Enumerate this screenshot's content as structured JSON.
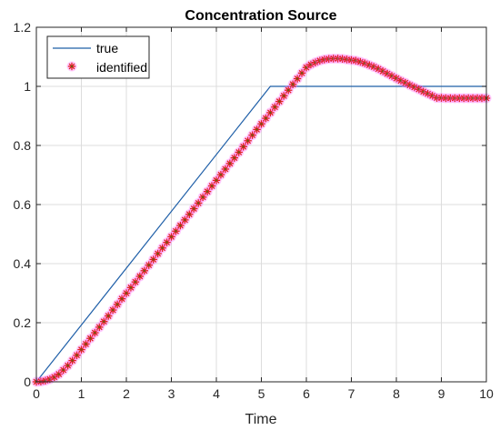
{
  "chart_data": {
    "type": "line",
    "title": "Concentration Source",
    "xlabel": "Time",
    "ylabel": "",
    "xlim": [
      0,
      10
    ],
    "ylim": [
      0,
      1.2
    ],
    "xticks": [
      "0",
      "1",
      "2",
      "3",
      "4",
      "5",
      "6",
      "7",
      "8",
      "9",
      "10"
    ],
    "yticks": [
      "0",
      "0.2",
      "0.4",
      "0.6",
      "0.8",
      "1",
      "1.2"
    ],
    "grid": true,
    "legend_position": "top-left",
    "series": [
      {
        "name": "true",
        "style": "line",
        "color": "#1f5fa8",
        "x": [
          0,
          5.2,
          10
        ],
        "y": [
          0,
          1.0,
          1.0
        ]
      },
      {
        "name": "identified",
        "style": "markers",
        "marker": "asterisk",
        "color": "#e02020",
        "halo_color": "#ff66ff",
        "core_color": "#6b5a10",
        "x": [
          0.0,
          0.1,
          0.2,
          0.3,
          0.4,
          0.5,
          0.6,
          0.7,
          0.8,
          0.9,
          1.0,
          1.1,
          1.2,
          1.3,
          1.4,
          1.5,
          1.6,
          1.7,
          1.8,
          1.9,
          2.0,
          2.1,
          2.2,
          2.3,
          2.4,
          2.5,
          2.6,
          2.7,
          2.8,
          2.9,
          3.0,
          3.1,
          3.2,
          3.3,
          3.4,
          3.5,
          3.6,
          3.7,
          3.8,
          3.9,
          4.0,
          4.1,
          4.2,
          4.3,
          4.4,
          4.5,
          4.6,
          4.7,
          4.8,
          4.9,
          5.0,
          5.1,
          5.2,
          5.3,
          5.4,
          5.5,
          5.6,
          5.7,
          5.8,
          5.9,
          6.0,
          6.1,
          6.2,
          6.3,
          6.4,
          6.5,
          6.6,
          6.7,
          6.8,
          6.9,
          7.0,
          7.1,
          7.2,
          7.3,
          7.4,
          7.5,
          7.6,
          7.7,
          7.8,
          7.9,
          8.0,
          8.1,
          8.2,
          8.3,
          8.4,
          8.5,
          8.6,
          8.7,
          8.8,
          8.9,
          9.0,
          9.1,
          9.2,
          9.3,
          9.4,
          9.5,
          9.6,
          9.7,
          9.8,
          9.9,
          10.0
        ],
        "y": [
          0.0,
          0.001,
          0.004,
          0.009,
          0.016,
          0.026,
          0.04,
          0.055,
          0.072,
          0.09,
          0.109,
          0.128,
          0.147,
          0.166,
          0.185,
          0.204,
          0.223,
          0.243,
          0.262,
          0.281,
          0.3,
          0.319,
          0.338,
          0.357,
          0.376,
          0.395,
          0.414,
          0.434,
          0.453,
          0.472,
          0.491,
          0.51,
          0.529,
          0.548,
          0.567,
          0.586,
          0.605,
          0.625,
          0.644,
          0.663,
          0.682,
          0.701,
          0.72,
          0.739,
          0.758,
          0.777,
          0.796,
          0.816,
          0.835,
          0.854,
          0.873,
          0.892,
          0.911,
          0.93,
          0.949,
          0.968,
          0.987,
          1.007,
          1.026,
          1.045,
          1.064,
          1.074,
          1.081,
          1.087,
          1.091,
          1.093,
          1.094,
          1.094,
          1.093,
          1.091,
          1.089,
          1.087,
          1.083,
          1.078,
          1.072,
          1.066,
          1.059,
          1.051,
          1.043,
          1.035,
          1.027,
          1.019,
          1.012,
          1.004,
          0.997,
          0.99,
          0.982,
          0.975,
          0.968,
          0.961,
          0.961,
          0.96,
          0.96,
          0.96,
          0.96,
          0.96,
          0.96,
          0.96,
          0.96,
          0.96,
          0.96
        ]
      }
    ]
  }
}
